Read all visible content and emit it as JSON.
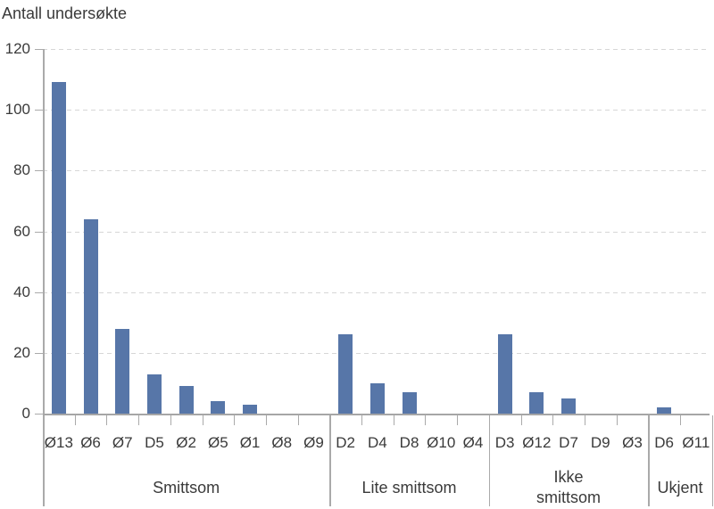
{
  "header": {
    "title": "Antall undersøkte"
  },
  "colors": {
    "bar": "#5776a8",
    "axis": "#aaaaaa",
    "grid": "#d7d7d7",
    "text": "#3a3a3a",
    "background": "#ffffff"
  },
  "chart_data": {
    "type": "bar",
    "title": "Antall undersøkte",
    "ylabel": "Antall undersøkte",
    "xlabel": "",
    "ylim": [
      0,
      120
    ],
    "yticks": [
      0,
      20,
      40,
      60,
      80,
      100,
      120
    ],
    "grid": "horizontal-dashed",
    "legend": "none",
    "bar_color": "#5776a8",
    "groups": [
      {
        "label": "Smittsom",
        "label_lines": [
          "Smittsom"
        ],
        "categories": [
          "Ø13",
          "Ø6",
          "Ø7",
          "D5",
          "Ø2",
          "Ø5",
          "Ø1",
          "Ø8",
          "Ø9"
        ],
        "values": [
          109,
          64,
          28,
          13,
          9,
          4,
          3,
          0,
          0
        ]
      },
      {
        "label": "Lite smittsom",
        "label_lines": [
          "Lite smittsom"
        ],
        "categories": [
          "D2",
          "D4",
          "D8",
          "Ø10",
          "Ø4"
        ],
        "values": [
          26,
          10,
          7,
          0,
          0
        ]
      },
      {
        "label": "Ikke smittsom",
        "label_lines": [
          "Ikke",
          "smittsom"
        ],
        "categories": [
          "D3",
          "Ø12",
          "D7",
          "D9",
          "Ø3"
        ],
        "values": [
          26,
          7,
          5,
          0,
          0
        ]
      },
      {
        "label": "Ukjent",
        "label_lines": [
          "Ukjent"
        ],
        "categories": [
          "D6",
          "Ø11"
        ],
        "values": [
          2,
          0
        ]
      }
    ]
  }
}
